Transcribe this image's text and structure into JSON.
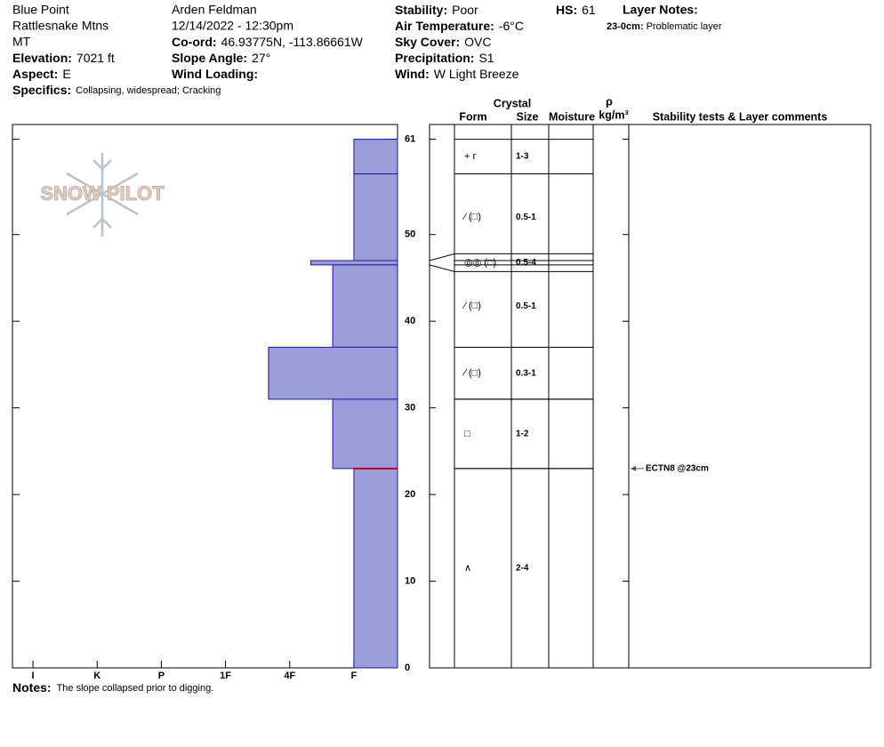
{
  "header": {
    "columns": [
      [
        "Blue Point",
        "Rattlesnake Mtns",
        "MT",
        {
          "label": "Elevation:",
          "value": "7021 ft"
        },
        {
          "label": "Aspect:",
          "value": "E"
        }
      ],
      [
        "Arden Feldman",
        "12/14/2022 - 12:30pm",
        {
          "label": "Co-ord:",
          "value": "46.93775N, -113.86661W"
        },
        {
          "label": "Slope Angle:",
          "value": "27°"
        },
        {
          "label": "Wind Loading:"
        }
      ],
      [
        {
          "label": "Stability:",
          "value": "Poor"
        },
        {
          "label": "Air Temperature:",
          "value": "-6°C"
        },
        {
          "label": "Sky Cover:",
          "value": "OVC"
        },
        {
          "label": "Precipitation:",
          "value": "S1"
        },
        {
          "label": "Wind:",
          "value": "W Light Breeze"
        }
      ],
      [
        {
          "label": "HS:",
          "value": "61"
        }
      ]
    ],
    "layer_notes": {
      "title": "Layer Notes:",
      "depth": "23-0cm:",
      "text": "Problematic layer"
    },
    "specifics": {
      "label": "Specifics:",
      "value": "Collapsing, widespread;  Cracking"
    },
    "notes": {
      "label": "Notes:",
      "value": "The slope collapsed prior to digging."
    },
    "logo": "SNOW PILOT"
  },
  "chart_data": {
    "type": "snow-profile",
    "ylim": [
      0,
      62.7
    ],
    "yticks": [
      0,
      10,
      20,
      30,
      40,
      50,
      61
    ],
    "xlim": [
      6.32,
      0.32
    ],
    "xticks": [
      {
        "value": 6,
        "label": "I"
      },
      {
        "value": 5,
        "label": "K"
      },
      {
        "value": 4,
        "label": "P"
      },
      {
        "value": 3,
        "label": "1F"
      },
      {
        "value": 2,
        "label": "4F"
      },
      {
        "value": 1,
        "label": "F"
      }
    ],
    "color": "#9c9cd8",
    "edge_color": "#1a1a9a",
    "layers": [
      {
        "top": 61,
        "bottom": 57,
        "hardness": 1
      },
      {
        "top": 57,
        "bottom": 47,
        "hardness": 1
      },
      {
        "top": 47,
        "bottom": 46.5,
        "hardness": 1.67
      },
      {
        "top": 46.5,
        "bottom": 37,
        "hardness": 1.33
      },
      {
        "top": 37,
        "bottom": 31,
        "hardness": 2.33
      },
      {
        "top": 31,
        "bottom": 23,
        "hardness": 1.33
      },
      {
        "top": 23,
        "bottom": 0,
        "hardness": 1
      }
    ],
    "problem_depth": 23,
    "problem_color": "#cc0000",
    "columns": {
      "crystal": "Crystal",
      "form": "Form",
      "size": "Size",
      "moisture": "Moisture",
      "density": "ρ",
      "density_unit": "kg/m³",
      "comments": "Stability tests & Layer comments"
    },
    "grains": [
      {
        "top": 61,
        "bottom": 57,
        "form": "+ r",
        "size": "1-3"
      },
      {
        "top": 57,
        "bottom": 47,
        "form": "⁄ (□)",
        "size": "0.5-1"
      },
      {
        "top": 47,
        "bottom": 46.5,
        "form": "◎◎ (□)",
        "size": "0.5-4"
      },
      {
        "top": 46.5,
        "bottom": 37,
        "form": "⁄ (□)",
        "size": "0.5-1"
      },
      {
        "top": 37,
        "bottom": 31,
        "form": "⁄ (□)",
        "size": "0.3-1"
      },
      {
        "top": 31,
        "bottom": 23,
        "form": "□",
        "size": "1-2"
      },
      {
        "top": 23,
        "bottom": 0,
        "form": "∧",
        "size": "2-4"
      }
    ],
    "comments": [
      {
        "depth": 23,
        "text": "ECTN8 @23cm"
      }
    ]
  }
}
